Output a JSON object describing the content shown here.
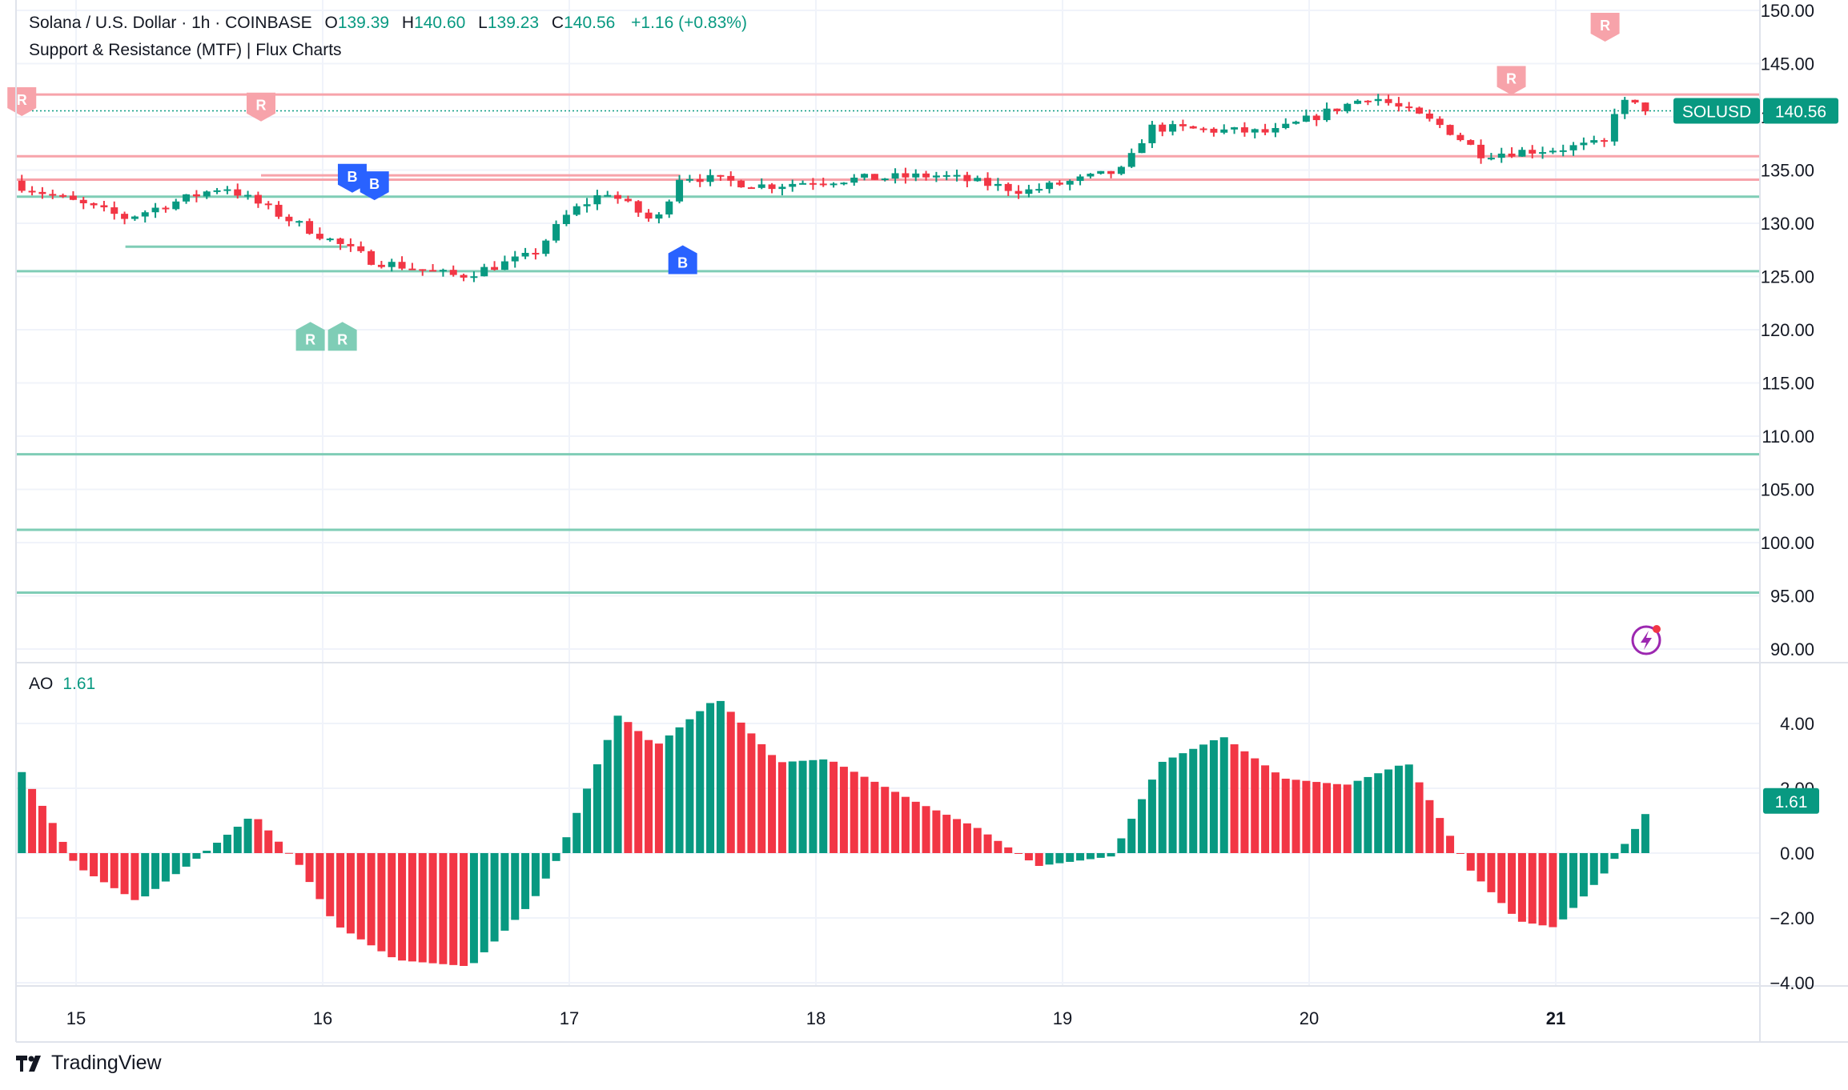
{
  "header": {
    "symbol_line": "Solana / U.S. Dollar · 1h · COINBASE",
    "open_label": "O",
    "open": "139.39",
    "high_label": "H",
    "high": "140.60",
    "low_label": "L",
    "low": "139.23",
    "close_label": "C",
    "close": "140.56",
    "change": "+1.16 (+0.83%)",
    "indicator": "Support & Resistance (MTF) | Flux Charts"
  },
  "ao_legend": {
    "name": "AO",
    "value": "1.61"
  },
  "price_tag": {
    "symbol": "SOLUSD",
    "value": "140.56"
  },
  "ao_tag": "1.61",
  "brand": "TradingView",
  "colors": {
    "up": "#089981",
    "down": "#f23645",
    "support": "#7fcdb6",
    "resistance": "#f7a3aa",
    "buy": "#2962ff",
    "grid": "#f0f3fa"
  },
  "chart_data": [
    {
      "type": "candlestick",
      "title": "Solana / U.S. Dollar · 1h · COINBASE",
      "x_ticks": [
        "15",
        "16",
        "17",
        "18",
        "19",
        "20",
        "21"
      ],
      "y_ticks": [
        "150.00",
        "145.00",
        "140.00",
        "135.00",
        "130.00",
        "125.00",
        "120.00",
        "115.00",
        "110.00",
        "105.00",
        "100.00",
        "95.00",
        "90.00"
      ],
      "ylim": [
        90,
        150
      ],
      "grid": true,
      "close_anchors": [
        {
          "day": 14.78,
          "close": 133.5
        },
        {
          "day": 15.2,
          "close": 130.5
        },
        {
          "day": 15.6,
          "close": 133.5
        },
        {
          "day": 15.85,
          "close": 130.5
        },
        {
          "day": 16.2,
          "close": 126.5
        },
        {
          "day": 16.55,
          "close": 125.0
        },
        {
          "day": 16.85,
          "close": 127.0
        },
        {
          "day": 17.0,
          "close": 131.0
        },
        {
          "day": 17.15,
          "close": 133.0
        },
        {
          "day": 17.35,
          "close": 130.0
        },
        {
          "day": 17.45,
          "close": 134.5
        },
        {
          "day": 17.8,
          "close": 133.5
        },
        {
          "day": 18.0,
          "close": 134.0
        },
        {
          "day": 18.5,
          "close": 134.5
        },
        {
          "day": 18.85,
          "close": 133.0
        },
        {
          "day": 19.25,
          "close": 135.0
        },
        {
          "day": 19.35,
          "close": 139.0
        },
        {
          "day": 19.85,
          "close": 138.5
        },
        {
          "day": 20.25,
          "close": 142.0
        },
        {
          "day": 20.55,
          "close": 139.0
        },
        {
          "day": 20.7,
          "close": 136.5
        },
        {
          "day": 21.0,
          "close": 137.0
        },
        {
          "day": 21.2,
          "close": 137.5
        },
        {
          "day": 21.25,
          "close": 141.5
        },
        {
          "day": 21.4,
          "close": 140.56
        }
      ],
      "support_levels": [
        132.5,
        125.5,
        108.3,
        101.2,
        95.3
      ],
      "short_support_levels": [
        {
          "value": 127.8,
          "from": 15.2,
          "to": 16.1
        }
      ],
      "resistance_levels": [
        142.1,
        136.3,
        134.1
      ],
      "short_resistance_levels": [
        {
          "value": 134.5,
          "from": 15.75,
          "to": 17.45
        }
      ],
      "last_price": 140.56,
      "markers": [
        {
          "label": "R",
          "day": 14.78,
          "value": 141.5,
          "kind": "resistance"
        },
        {
          "label": "R",
          "day": 15.75,
          "value": 141.0,
          "kind": "resistance"
        },
        {
          "label": "R",
          "day": 20.82,
          "value": 143.5,
          "kind": "resistance"
        },
        {
          "label": "R",
          "day": 21.2,
          "value": 148.5,
          "kind": "resistance"
        },
        {
          "label": "B",
          "day": 16.12,
          "value": 134.3,
          "kind": "buy"
        },
        {
          "label": "B",
          "day": 16.21,
          "value": 133.6,
          "kind": "buy"
        },
        {
          "label": "B",
          "day": 17.46,
          "value": 126.5,
          "kind": "buy-up"
        },
        {
          "label": "R",
          "day": 15.95,
          "value": 119.3,
          "kind": "support"
        },
        {
          "label": "R",
          "day": 16.08,
          "value": 119.3,
          "kind": "support"
        }
      ]
    },
    {
      "type": "bar",
      "title": "AO",
      "y_ticks": [
        "4.00",
        "2.00",
        "0.00",
        "−2.00",
        "−4.00"
      ],
      "ylim": [
        -4.5,
        5.0
      ],
      "anchors": [
        {
          "day": 14.78,
          "value": 2.5
        },
        {
          "day": 14.9,
          "value": 1.0
        },
        {
          "day": 15.0,
          "value": -0.4
        },
        {
          "day": 15.25,
          "value": -1.5
        },
        {
          "day": 15.45,
          "value": -0.4
        },
        {
          "day": 15.72,
          "value": 1.2
        },
        {
          "day": 15.9,
          "value": -0.3
        },
        {
          "day": 16.05,
          "value": -2.2
        },
        {
          "day": 16.3,
          "value": -3.3
        },
        {
          "day": 16.6,
          "value": -3.5
        },
        {
          "day": 16.85,
          "value": -1.5
        },
        {
          "day": 16.95,
          "value": -0.2
        },
        {
          "day": 17.1,
          "value": 2.5
        },
        {
          "day": 17.2,
          "value": 4.3
        },
        {
          "day": 17.35,
          "value": 3.3
        },
        {
          "day": 17.6,
          "value": 4.8
        },
        {
          "day": 17.85,
          "value": 2.8
        },
        {
          "day": 18.05,
          "value": 2.9
        },
        {
          "day": 18.4,
          "value": 1.6
        },
        {
          "day": 18.65,
          "value": 0.8
        },
        {
          "day": 18.9,
          "value": -0.4
        },
        {
          "day": 19.2,
          "value": -0.1
        },
        {
          "day": 19.4,
          "value": 2.8
        },
        {
          "day": 19.65,
          "value": 3.6
        },
        {
          "day": 19.9,
          "value": 2.3
        },
        {
          "day": 20.15,
          "value": 2.1
        },
        {
          "day": 20.4,
          "value": 2.8
        },
        {
          "day": 20.65,
          "value": -0.5
        },
        {
          "day": 20.85,
          "value": -2.1
        },
        {
          "day": 21.0,
          "value": -2.3
        },
        {
          "day": 21.2,
          "value": -0.6
        },
        {
          "day": 21.4,
          "value": 1.61
        }
      ],
      "last_value": 1.61
    }
  ]
}
